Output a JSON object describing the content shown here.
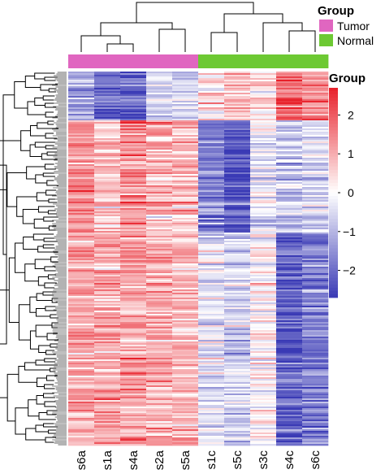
{
  "chart_data": {
    "type": "heatmap",
    "columns": [
      "s6a",
      "s1a",
      "s4a",
      "s2a",
      "s5a",
      "s1c",
      "s5c",
      "s3c",
      "s4c",
      "s6c"
    ],
    "column_groups": [
      "Tumor",
      "Tumor",
      "Tumor",
      "Tumor",
      "Tumor",
      "Normal",
      "Normal",
      "Normal",
      "Normal",
      "Normal"
    ],
    "group_legend": {
      "title": "Group",
      "entries": [
        {
          "label": "Tumor",
          "color": "#e066c0"
        },
        {
          "label": "Normal",
          "color": "#6dc933"
        }
      ]
    },
    "colorbar": {
      "title": "Group",
      "range": [
        -2.7,
        2.7
      ],
      "ticks": [
        2,
        1,
        0,
        -1,
        -2
      ],
      "tick_labels": [
        "2",
        "1",
        "0",
        "−1",
        "−2"
      ],
      "colors": {
        "low": "#3a3ab5",
        "mid": "#ffffff",
        "high": "#e8202a"
      }
    },
    "row_clusters": [
      {
        "fraction": 0.13,
        "values": [
          -1.2,
          -2.0,
          -2.2,
          -0.6,
          -0.5,
          0.3,
          0.9,
          0.3,
          1.8,
          1.4
        ]
      },
      {
        "fraction": 0.3,
        "values": [
          1.4,
          0.9,
          1.3,
          0.9,
          0.8,
          -1.7,
          -2.2,
          -0.3,
          -0.7,
          -0.5
        ]
      },
      {
        "fraction": 0.57,
        "values": [
          1.0,
          1.0,
          1.1,
          0.9,
          0.8,
          -0.4,
          -0.7,
          0.1,
          -2.1,
          -1.7
        ]
      }
    ],
    "dendrograms": {
      "column": true,
      "row": true
    },
    "grid": false
  }
}
